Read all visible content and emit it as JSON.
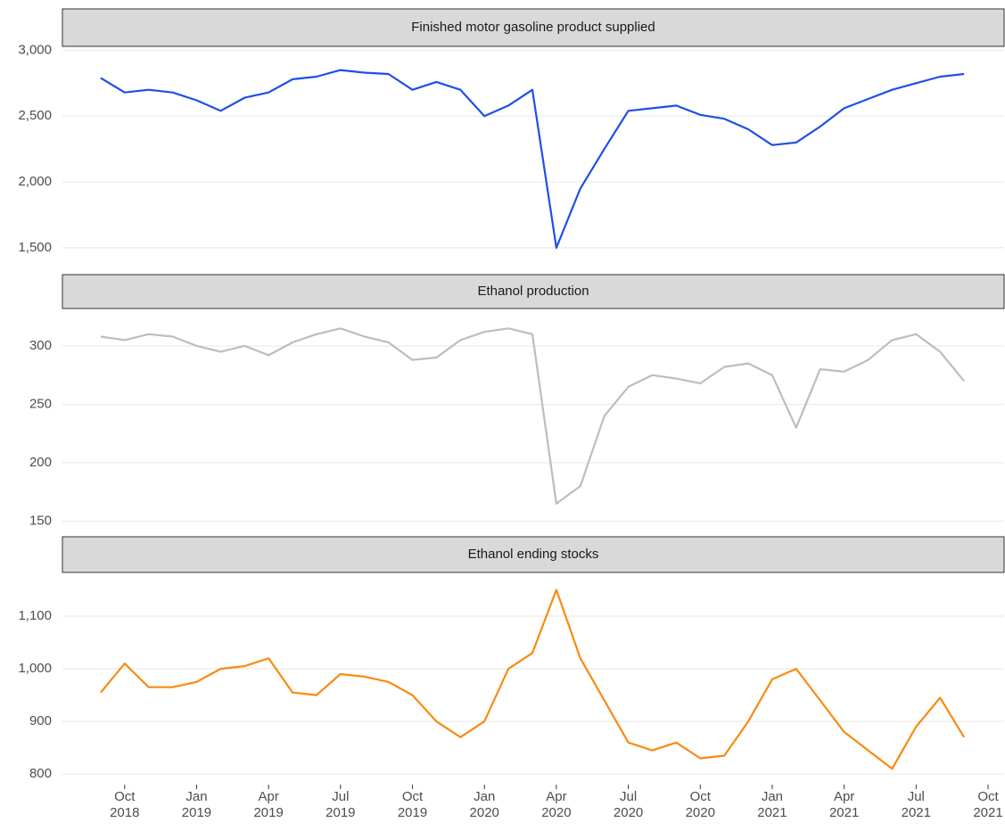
{
  "chart_data": {
    "type": "line",
    "grid": true,
    "x": [
      "2018-09",
      "2018-10",
      "2018-11",
      "2018-12",
      "2019-01",
      "2019-02",
      "2019-03",
      "2019-04",
      "2019-05",
      "2019-06",
      "2019-07",
      "2019-08",
      "2019-09",
      "2019-10",
      "2019-11",
      "2019-12",
      "2020-01",
      "2020-02",
      "2020-03",
      "2020-04",
      "2020-05",
      "2020-06",
      "2020-07",
      "2020-08",
      "2020-09",
      "2020-10",
      "2020-11",
      "2020-12",
      "2021-01",
      "2021-02",
      "2021-03",
      "2021-04",
      "2021-05",
      "2021-06",
      "2021-07",
      "2021-08",
      "2021-09"
    ],
    "xlim": [
      "2018-08",
      "2021-10"
    ],
    "xticks": [
      {
        "value": "2018-10",
        "label": "Oct 2018"
      },
      {
        "value": "2019-01",
        "label": "Jan 2019"
      },
      {
        "value": "2019-04",
        "label": "Apr 2019"
      },
      {
        "value": "2019-07",
        "label": "Jul 2019"
      },
      {
        "value": "2019-10",
        "label": "Oct 2019"
      },
      {
        "value": "2020-01",
        "label": "Jan 2020"
      },
      {
        "value": "2020-04",
        "label": "Apr 2020"
      },
      {
        "value": "2020-07",
        "label": "Jul 2020"
      },
      {
        "value": "2020-10",
        "label": "Oct 2020"
      },
      {
        "value": "2021-01",
        "label": "Jan 2021"
      },
      {
        "value": "2021-04",
        "label": "Apr 2021"
      },
      {
        "value": "2021-07",
        "label": "Jul 2021"
      },
      {
        "value": "2021-10",
        "label": "Oct 2021"
      }
    ],
    "panels": [
      {
        "title": "Finished motor gasoline product supplied",
        "color": "#1f4ee8",
        "ylim": [
          1350,
          3030
        ],
        "yticks": [
          {
            "value": 1500,
            "label": "1,500"
          },
          {
            "value": 2000,
            "label": "2,000"
          },
          {
            "value": 2500,
            "label": "2,500"
          },
          {
            "value": 3000,
            "label": "3,000"
          }
        ],
        "values": [
          2790,
          2680,
          2700,
          2680,
          2620,
          2540,
          2640,
          2680,
          2780,
          2800,
          2850,
          2830,
          2820,
          2700,
          2760,
          2700,
          2500,
          2580,
          2700,
          1500,
          1950,
          2250,
          2540,
          2560,
          2580,
          2510,
          2480,
          2400,
          2280,
          2300,
          2420,
          2560,
          2630,
          2700,
          2750,
          2800,
          2820
        ]
      },
      {
        "title": "Ethanol production",
        "color": "#bdbdbd",
        "ylim": [
          142,
          332
        ],
        "yticks": [
          150,
          200,
          250,
          300
        ],
        "values": [
          308,
          305,
          310,
          308,
          300,
          295,
          300,
          292,
          303,
          310,
          315,
          308,
          303,
          288,
          290,
          305,
          312,
          315,
          310,
          165,
          180,
          240,
          265,
          275,
          272,
          268,
          282,
          285,
          275,
          230,
          280,
          278,
          288,
          305,
          310,
          295,
          270
        ]
      },
      {
        "title": "Ethanol ending stocks",
        "color": "#f98a10",
        "ylim": [
          780,
          1183
        ],
        "yticks": [
          {
            "value": 800,
            "label": "800"
          },
          {
            "value": 900,
            "label": "900"
          },
          {
            "value": 1000,
            "label": "1,000"
          },
          {
            "value": 1100,
            "label": "1,100"
          }
        ],
        "values": [
          955,
          1010,
          965,
          965,
          975,
          1000,
          1005,
          1020,
          955,
          950,
          990,
          985,
          975,
          950,
          900,
          870,
          900,
          1000,
          1030,
          1150,
          1020,
          940,
          860,
          845,
          860,
          830,
          835,
          900,
          980,
          1000,
          940,
          880,
          845,
          810,
          890,
          945,
          870
        ]
      }
    ]
  }
}
